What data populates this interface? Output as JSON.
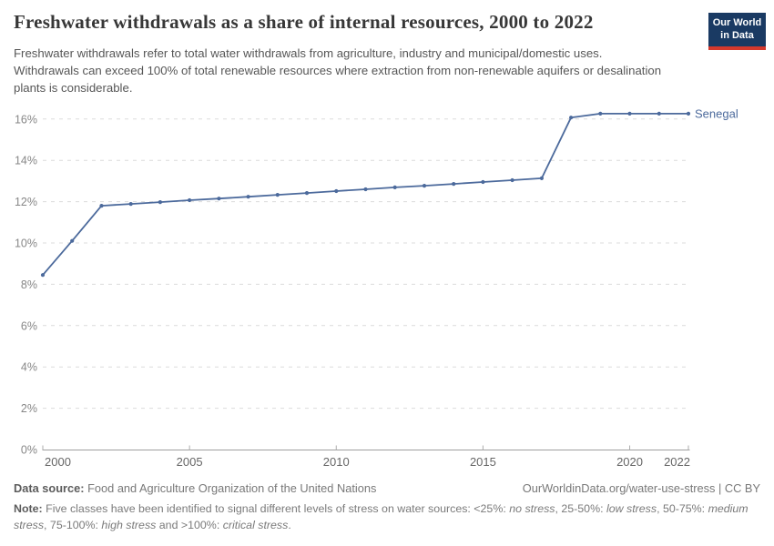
{
  "header": {
    "title": "Freshwater withdrawals as a share of internal resources, 2000 to 2022",
    "subtitle": "Freshwater withdrawals refer to total water withdrawals from agriculture, industry and municipal/domestic uses. Withdrawals can exceed 100% of total renewable resources where extraction from non-renewable aquifers or desalination plants is considerable.",
    "logo": {
      "line1": "Our World",
      "line2": "in Data"
    }
  },
  "chart_data": {
    "type": "line",
    "title": "Freshwater withdrawals as a share of internal resources, 2000 to 2022",
    "xlabel": "",
    "ylabel": "",
    "x": [
      2000,
      2001,
      2002,
      2003,
      2004,
      2005,
      2006,
      2007,
      2008,
      2009,
      2010,
      2011,
      2012,
      2013,
      2014,
      2015,
      2016,
      2017,
      2018,
      2019,
      2020,
      2021,
      2022
    ],
    "series": [
      {
        "name": "Senegal",
        "values": [
          8.45,
          10.1,
          11.8,
          11.89,
          11.98,
          12.07,
          12.15,
          12.24,
          12.33,
          12.42,
          12.51,
          12.6,
          12.69,
          12.77,
          12.86,
          12.95,
          13.04,
          13.13,
          16.07,
          16.26,
          16.26,
          16.26,
          16.26
        ]
      }
    ],
    "xticks": [
      2000,
      2005,
      2010,
      2015,
      2020,
      2022
    ],
    "yticks": [
      0,
      2,
      4,
      6,
      8,
      10,
      12,
      14,
      16
    ],
    "ytick_suffix": "%",
    "xlim": [
      2000,
      2022
    ],
    "ylim": [
      0,
      17.4
    ],
    "grid": "horizontal dashed",
    "legend_position": "end-of-line label"
  },
  "colors": {
    "line": "#4c6a9c",
    "entity_label": "#4c6a9c",
    "grid": "#dcdcdc",
    "axis": "#9e9e9e",
    "tick": "#adadad",
    "y_label": "#878787",
    "x_label": "#666666",
    "title": "#373737",
    "subtitle": "#565656",
    "footer_text": "#787878",
    "logo_bg": "#1a3a63",
    "logo_accent": "#d5392d"
  },
  "footer": {
    "source_label": "Data source:",
    "source_value": "Food and Agriculture Organization of the United Nations",
    "attribution": "OurWorldinData.org/water-use-stress | CC BY",
    "note_label": "Note:",
    "note_parts": [
      {
        "t": "Five classes have been identified to signal different levels of stress on water sources: <25%: "
      },
      {
        "t": "no stress",
        "i": true
      },
      {
        "t": ", 25-50%: "
      },
      {
        "t": "low stress",
        "i": true
      },
      {
        "t": ", 50-75%: "
      },
      {
        "t": "medium stress",
        "i": true
      },
      {
        "t": ", 75-100%: "
      },
      {
        "t": "high stress",
        "i": true
      },
      {
        "t": " and >100%: "
      },
      {
        "t": "critical stress",
        "i": true
      },
      {
        "t": "."
      }
    ]
  }
}
